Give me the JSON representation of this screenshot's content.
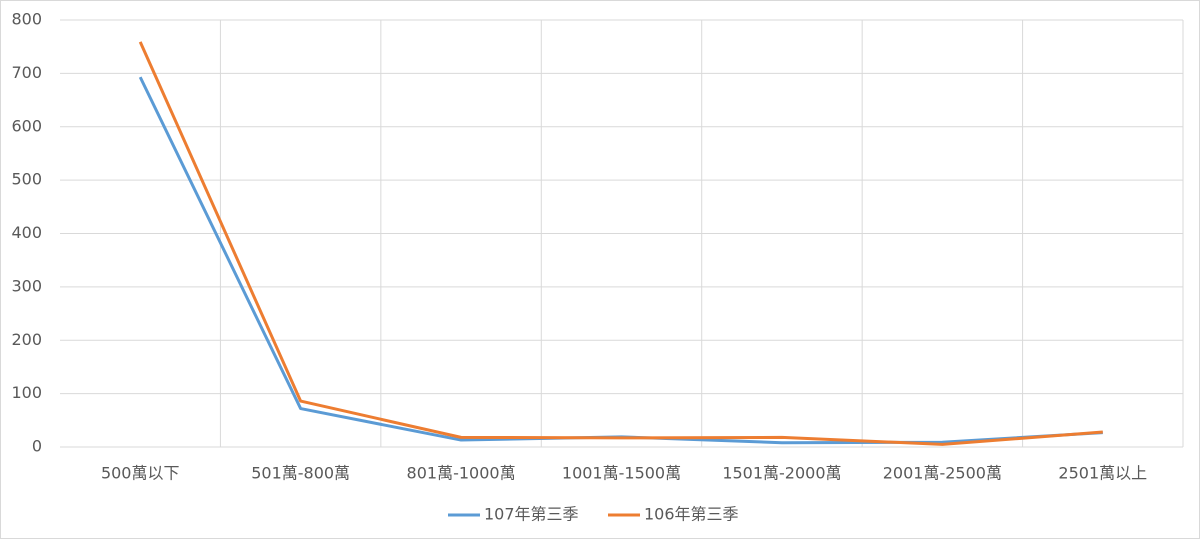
{
  "chart_data": {
    "type": "line",
    "categories": [
      "500萬以下",
      "501萬-800萬",
      "801萬-1000萬",
      "1001萬-1500萬",
      "1501萬-2000萬",
      "2001萬-2500萬",
      "2501萬以上"
    ],
    "series": [
      {
        "name": "107年第三季",
        "color": "#5b9bd5",
        "values": [
          693,
          72,
          13,
          19,
          8,
          9,
          27
        ]
      },
      {
        "name": "106年第三季",
        "color": "#ed7d31",
        "values": [
          759,
          86,
          18,
          17,
          18,
          5,
          28
        ]
      }
    ],
    "ylim": [
      0,
      800
    ],
    "yticks": [
      0,
      100,
      200,
      300,
      400,
      500,
      600,
      700,
      800
    ],
    "grid": true,
    "legend": "bottom"
  }
}
